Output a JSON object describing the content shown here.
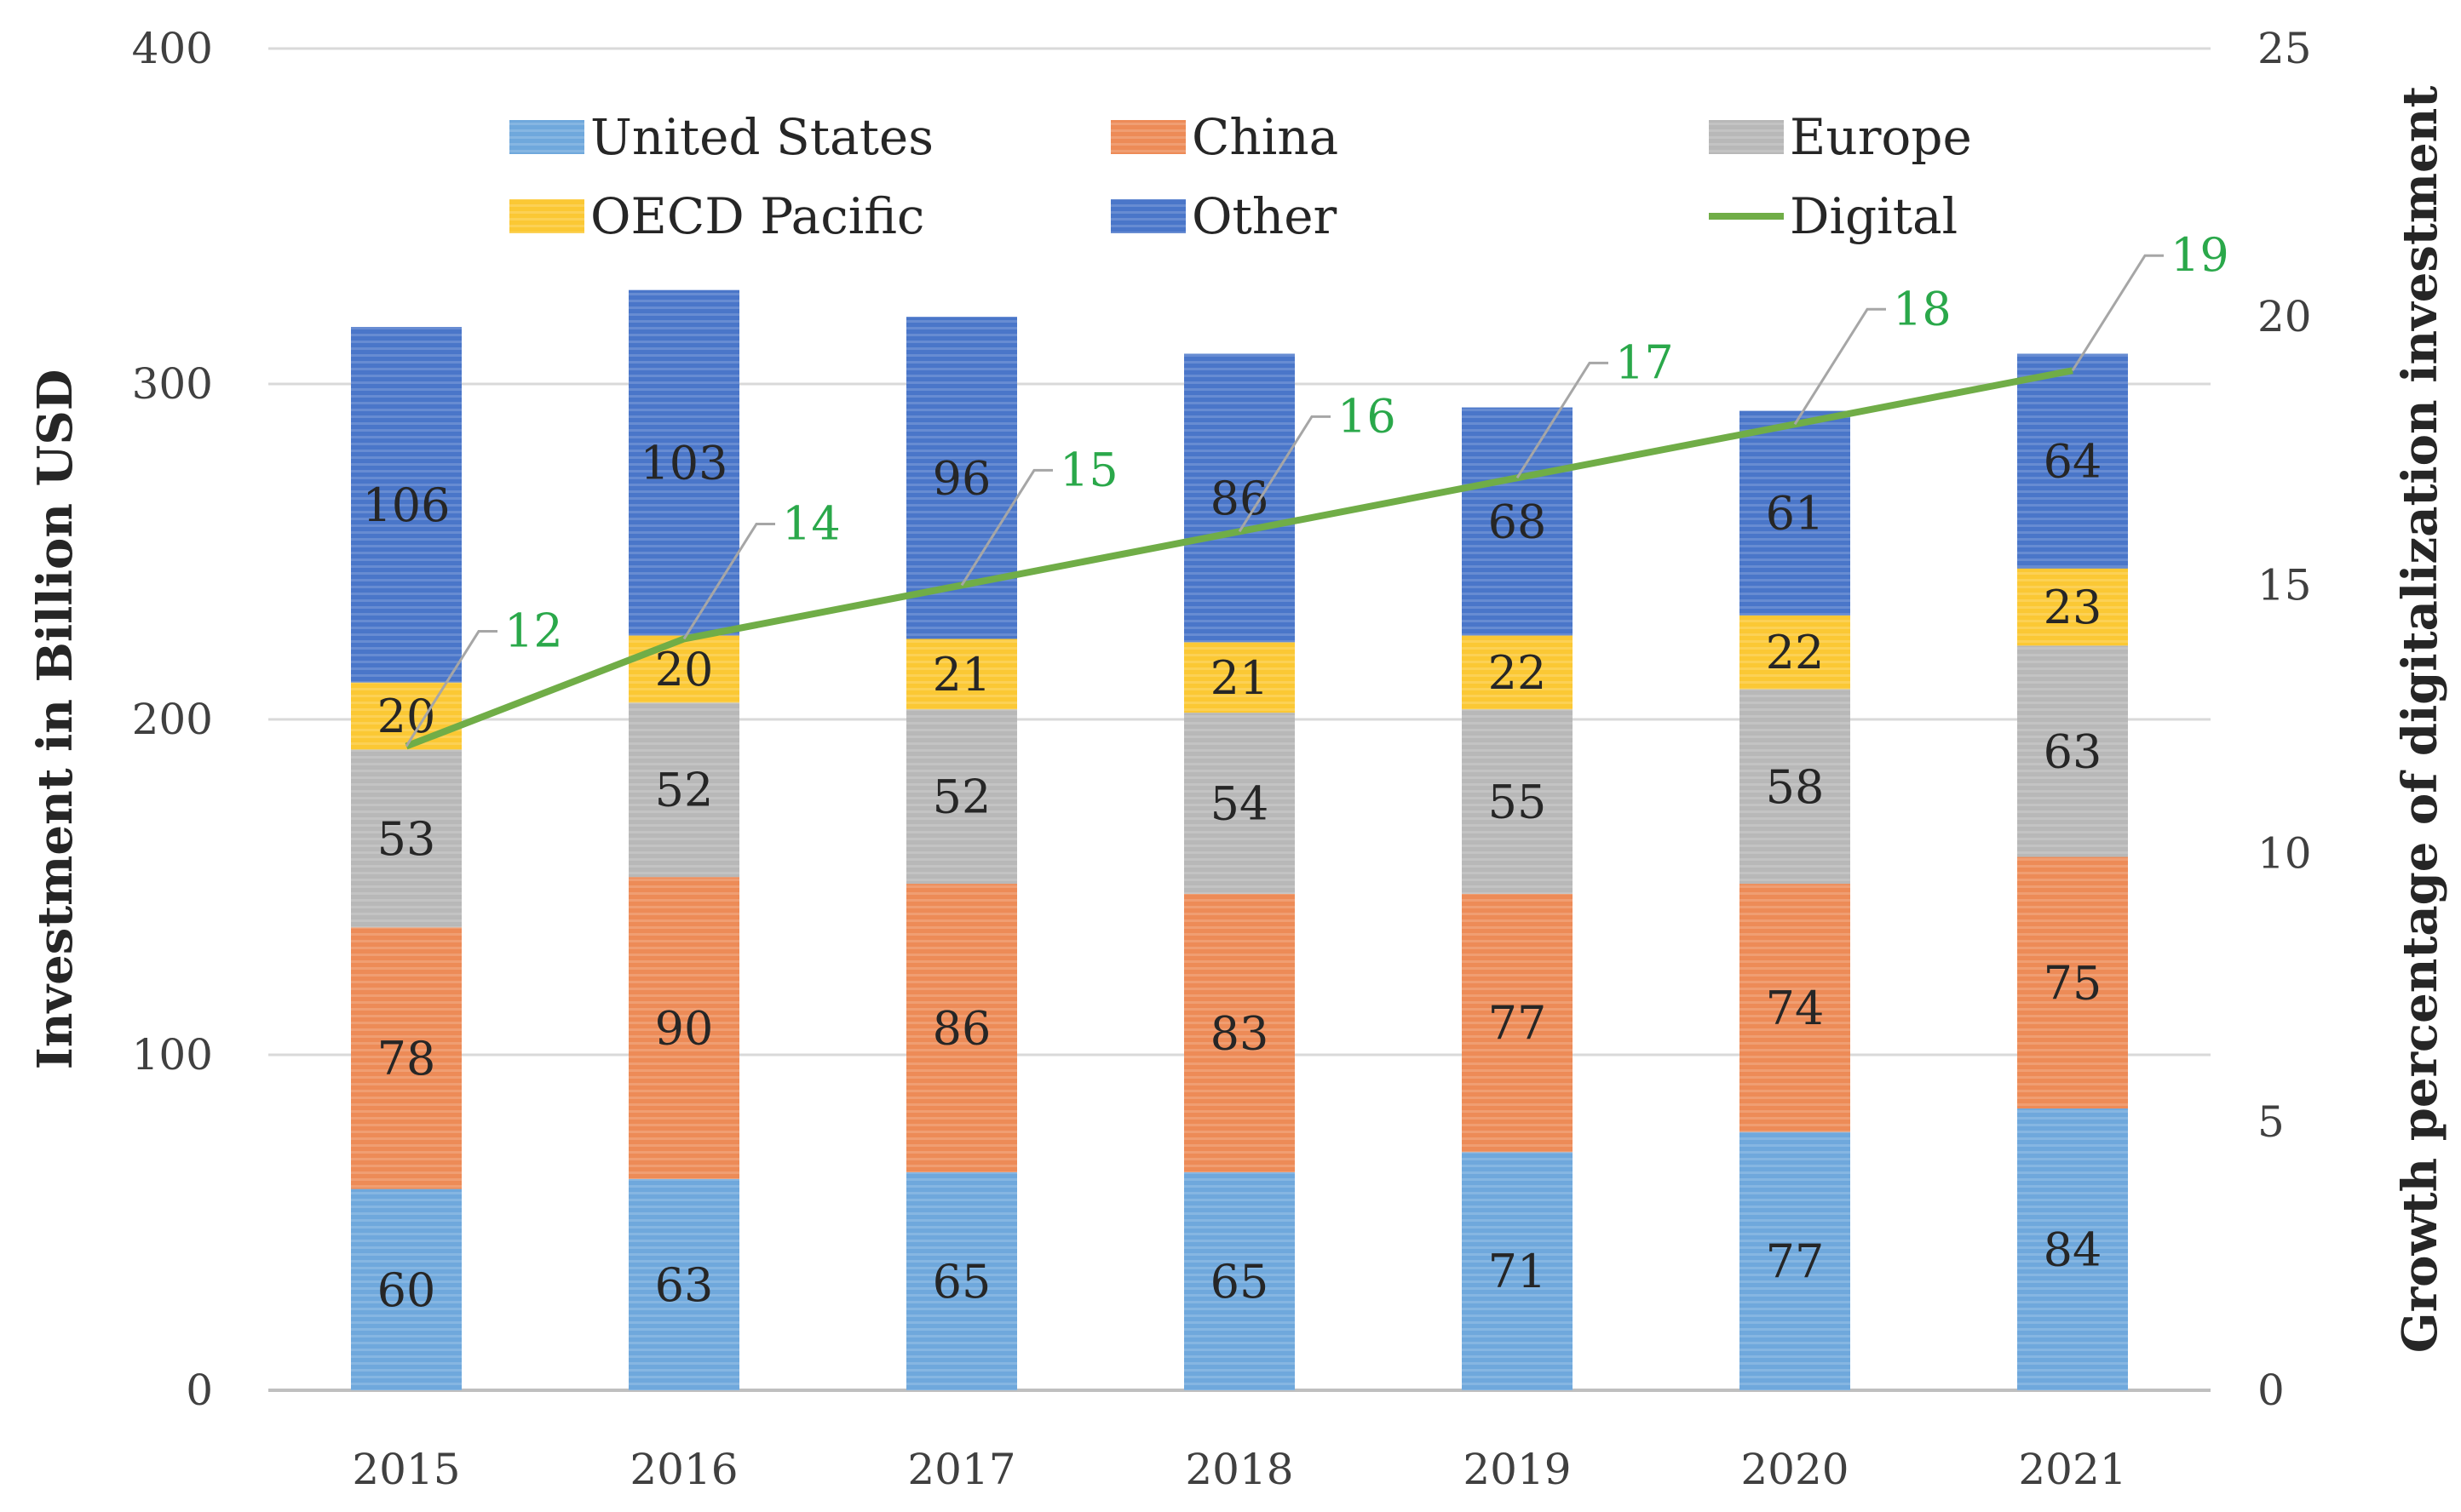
{
  "chart_data": {
    "type": "bar",
    "stacked": true,
    "categories": [
      "2015",
      "2016",
      "2017",
      "2018",
      "2019",
      "2020",
      "2021"
    ],
    "series": [
      {
        "name": "United States",
        "color": "#6fa8dc",
        "values": [
          60,
          63,
          65,
          65,
          71,
          77,
          84
        ]
      },
      {
        "name": "China",
        "color": "#ed8b57",
        "values": [
          78,
          90,
          86,
          83,
          77,
          74,
          75
        ]
      },
      {
        "name": "Europe",
        "color": "#b8b8b8",
        "values": [
          53,
          52,
          52,
          54,
          55,
          58,
          63
        ]
      },
      {
        "name": "OECD Pacific",
        "color": "#fbc834",
        "values": [
          20,
          20,
          21,
          21,
          22,
          22,
          23
        ]
      },
      {
        "name": "Other",
        "color": "#4a76c9",
        "values": [
          106,
          103,
          96,
          86,
          68,
          61,
          64
        ]
      }
    ],
    "line_series": {
      "name": "Digital",
      "color": "#70ad47",
      "values": [
        12,
        14,
        15,
        16,
        17,
        18,
        19
      ],
      "axis": "right"
    },
    "ylabel": "Investment in Billion USD",
    "y2label": "Growth percentage of digitalization investment",
    "ylim": [
      0,
      400
    ],
    "y2lim": [
      0,
      25
    ],
    "yticks": [
      "0",
      "100",
      "200",
      "300",
      "400"
    ],
    "y2ticks": [
      "0",
      "5",
      "10",
      "15",
      "20",
      "25"
    ],
    "grid": true,
    "legend_position": "top"
  }
}
